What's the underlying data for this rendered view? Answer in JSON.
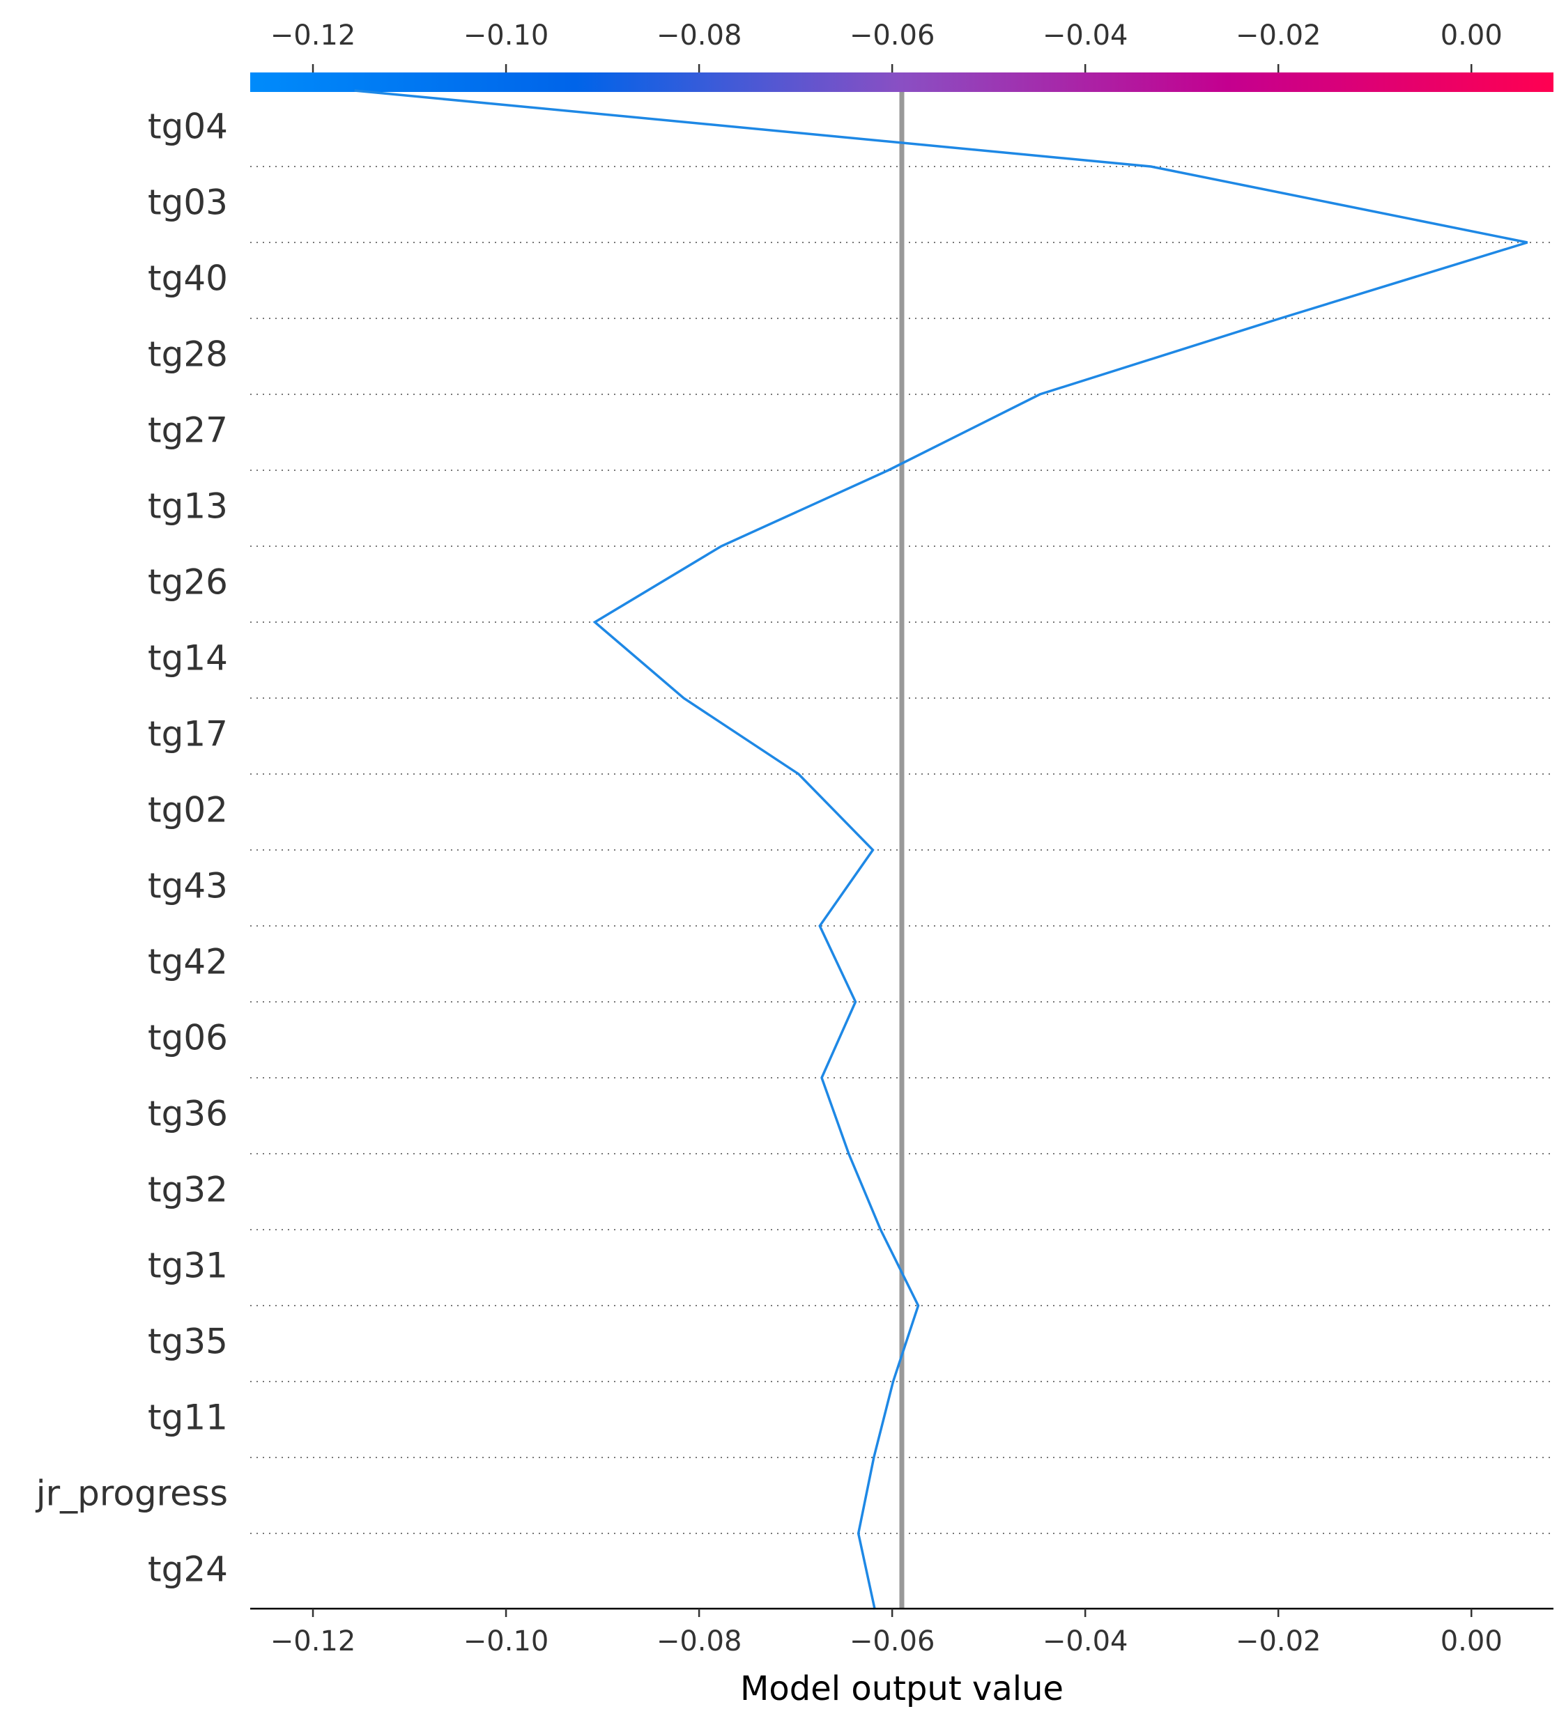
{
  "chart_data": {
    "type": "line",
    "title": "",
    "xlabel": "Model output value",
    "ylabel": "",
    "xlim": [
      -0.1265,
      0.0085
    ],
    "xticks": [
      -0.12,
      -0.1,
      -0.08,
      -0.06,
      -0.04,
      -0.02,
      0.0
    ],
    "xtick_labels": [
      "−0.12",
      "−0.10",
      "−0.08",
      "−0.06",
      "−0.04",
      "−0.02",
      "0.00"
    ],
    "base_value": -0.059,
    "features": [
      "tg04",
      "tg03",
      "tg40",
      "tg28",
      "tg27",
      "tg13",
      "tg26",
      "tg14",
      "tg17",
      "tg02",
      "tg43",
      "tg42",
      "tg06",
      "tg36",
      "tg32",
      "tg31",
      "tg35",
      "tg11",
      "jr_progress",
      "tg24"
    ],
    "series": [
      {
        "name": "decision-path",
        "color": "#1e88e5",
        "values": [
          -0.1157,
          -0.0332,
          0.0058,
          -0.0198,
          -0.0447,
          -0.0604,
          -0.0777,
          -0.0908,
          -0.0816,
          -0.0697,
          -0.062,
          -0.0675,
          -0.0638,
          -0.0673,
          -0.0645,
          -0.0612,
          -0.0573,
          -0.0599,
          -0.0619,
          -0.0635,
          -0.0618
        ]
      }
    ],
    "colorbar": {
      "range": [
        -0.1265,
        0.0085
      ],
      "colors": [
        "#008bfb",
        "#0064e9",
        "#8a4fc3",
        "#c4008f",
        "#ff0051"
      ]
    },
    "grid": "horizontal-dotted"
  }
}
